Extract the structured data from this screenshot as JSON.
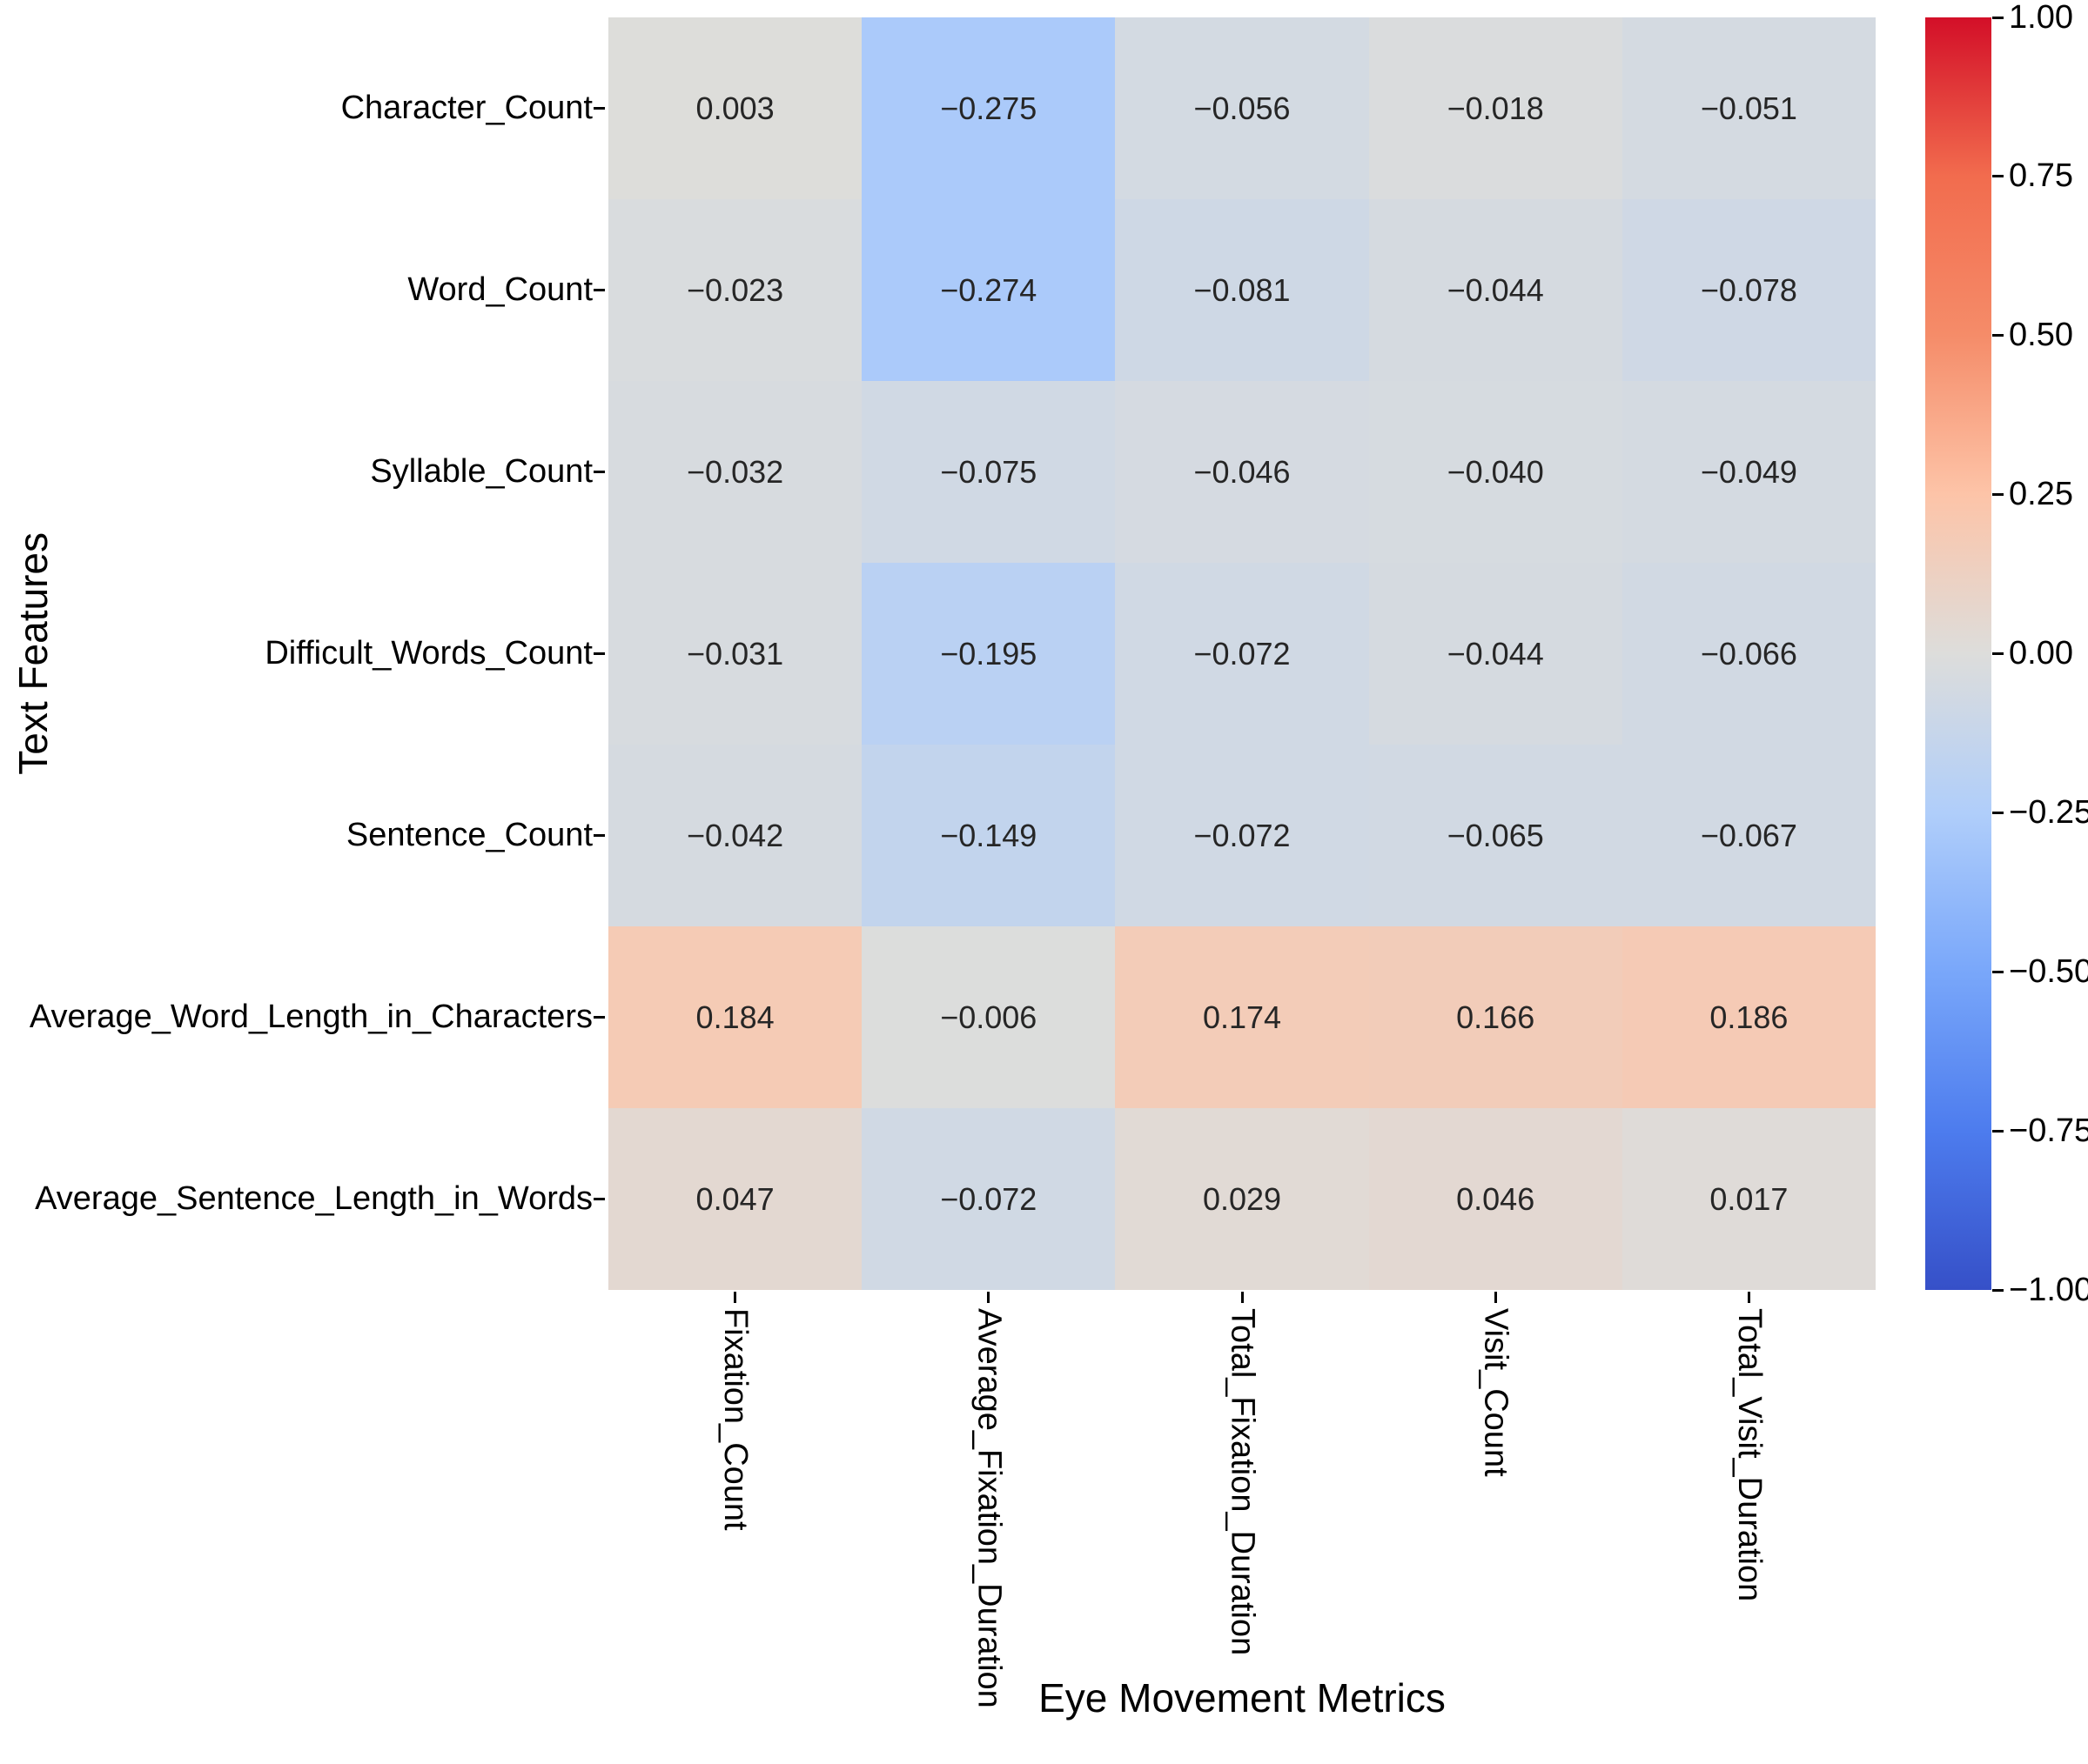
{
  "chart_data": {
    "type": "heatmap",
    "title": "",
    "xlabel": "Eye Movement Metrics",
    "ylabel": "Text Features",
    "columns": [
      "Fixation_Count",
      "Average_Fixation_Duration",
      "Total_Fixation_Duration",
      "Visit_Count",
      "Total_Visit_Duration"
    ],
    "rows": [
      "Character_Count",
      "Word_Count",
      "Syllable_Count",
      "Difficult_Words_Count",
      "Sentence_Count",
      "Average_Word_Length_in_Characters",
      "Average_Sentence_Length_in_Words"
    ],
    "values": [
      [
        0.003,
        -0.275,
        -0.056,
        -0.018,
        -0.051
      ],
      [
        -0.023,
        -0.274,
        -0.081,
        -0.044,
        -0.078
      ],
      [
        -0.032,
        -0.075,
        -0.046,
        -0.04,
        -0.049
      ],
      [
        -0.031,
        -0.195,
        -0.072,
        -0.044,
        -0.066
      ],
      [
        -0.042,
        -0.149,
        -0.072,
        -0.065,
        -0.067
      ],
      [
        0.184,
        -0.006,
        0.174,
        0.166,
        0.186
      ],
      [
        0.047,
        -0.072,
        0.029,
        0.046,
        0.017
      ]
    ],
    "annotation_decimals": 3,
    "vmin": -1,
    "vmax": 1,
    "grid": false,
    "legend_position": "colorbar-right",
    "colorbar_ticks": [
      {
        "v": 1.0,
        "label": "1.00"
      },
      {
        "v": 0.75,
        "label": "0.75"
      },
      {
        "v": 0.5,
        "label": "0.50"
      },
      {
        "v": 0.25,
        "label": "0.25"
      },
      {
        "v": 0.0,
        "label": "0.00"
      },
      {
        "v": -0.25,
        "label": "−0.25"
      },
      {
        "v": -0.5,
        "label": "−0.50"
      },
      {
        "v": -0.75,
        "label": "−0.75"
      },
      {
        "v": -1.0,
        "label": "−1.00"
      }
    ],
    "colormap_stops": [
      {
        "v": -1.0,
        "color": "#3650C8"
      },
      {
        "v": -0.75,
        "color": "#4D7CEE"
      },
      {
        "v": -0.5,
        "color": "#79A7FA"
      },
      {
        "v": -0.25,
        "color": "#B0CEFA"
      },
      {
        "v": 0.0,
        "color": "#DDDDDB"
      },
      {
        "v": 0.25,
        "color": "#FDC4A8"
      },
      {
        "v": 0.5,
        "color": "#F58C69"
      },
      {
        "v": 0.75,
        "color": "#F26C4E"
      },
      {
        "v": 1.0,
        "color": "#D30F28"
      }
    ],
    "annotation_color": "#262626"
  }
}
